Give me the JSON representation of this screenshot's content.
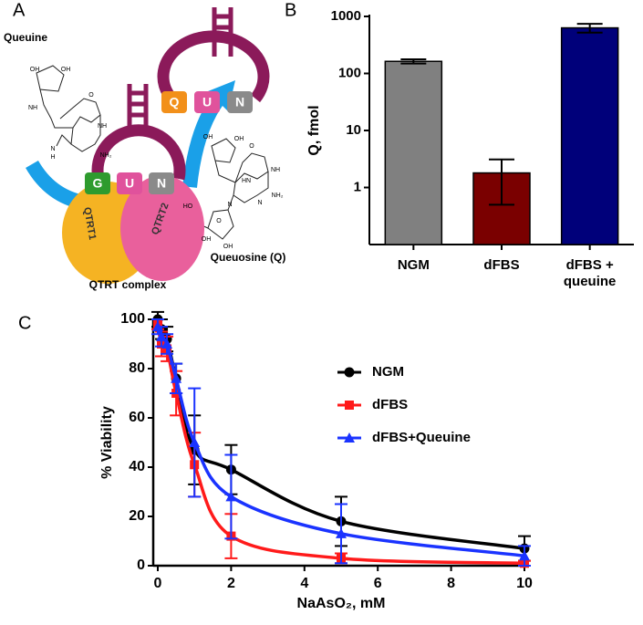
{
  "diagram": {
    "panel_label": "A",
    "queuine_label": "Queuine",
    "complex_label": "QTRT complex",
    "queuosine_label": "Queuosine (Q)",
    "subunit_1": "QTRT1",
    "subunit_2": "QTRT2",
    "anticodon_before": [
      "G",
      "U",
      "N"
    ],
    "anticodon_after": [
      "Q",
      "U",
      "N"
    ],
    "queuine_atoms": [
      "OH",
      "OH",
      "NH",
      "O",
      "NH",
      "NH₂",
      "N",
      "H"
    ],
    "queuosine_atoms": [
      "OH",
      "OH",
      "HN",
      "O",
      "NH",
      "NH₂",
      "N",
      "N",
      "HO",
      "O",
      "OH",
      "OH"
    ]
  },
  "chart_data": [
    {
      "type": "bar",
      "panel_label": "B",
      "ylabel": "Q, fmol",
      "log_scale": true,
      "categories": [
        "NGM",
        "dFBS",
        "dFBS + queuine"
      ],
      "values": [
        163,
        1.8,
        630
      ],
      "errors": [
        14,
        1.3,
        110
      ],
      "colors": [
        "#808080",
        "#7a0000",
        "#00007a"
      ],
      "ylim": [
        0.1,
        1000
      ],
      "yticks": [
        1,
        10,
        100,
        1000
      ]
    },
    {
      "type": "line",
      "panel_label": "C",
      "xlabel": "NaAsO₂, mM",
      "ylabel": "% Viability",
      "legend": "right",
      "x": [
        0,
        0.1,
        0.25,
        0.5,
        1,
        2,
        5,
        10
      ],
      "series": [
        {
          "name": "NGM",
          "color": "#000000",
          "marker": "circle",
          "values": [
            100,
            96,
            92,
            76,
            47,
            39,
            18,
            7
          ],
          "errors": [
            3,
            4,
            5,
            6,
            14,
            10,
            10,
            5
          ]
        },
        {
          "name": "dFBS",
          "color": "#ff1a1a",
          "marker": "square",
          "values": [
            98,
            90,
            88,
            70,
            41,
            12,
            3,
            1
          ],
          "errors": [
            2,
            5,
            5,
            9,
            13,
            9,
            2,
            1
          ]
        },
        {
          "name": "dFBS+Queuine",
          "color": "#1a33ff",
          "marker": "triangle",
          "values": [
            97,
            93,
            90,
            76,
            50,
            28,
            13,
            4
          ],
          "errors": [
            3,
            4,
            4,
            6,
            22,
            17,
            12,
            4
          ]
        }
      ],
      "xlim": [
        0,
        10
      ],
      "xticks": [
        0,
        2,
        4,
        6,
        8,
        10
      ],
      "ylim": [
        0,
        100
      ],
      "yticks": [
        0,
        20,
        40,
        60,
        80,
        100
      ]
    }
  ]
}
